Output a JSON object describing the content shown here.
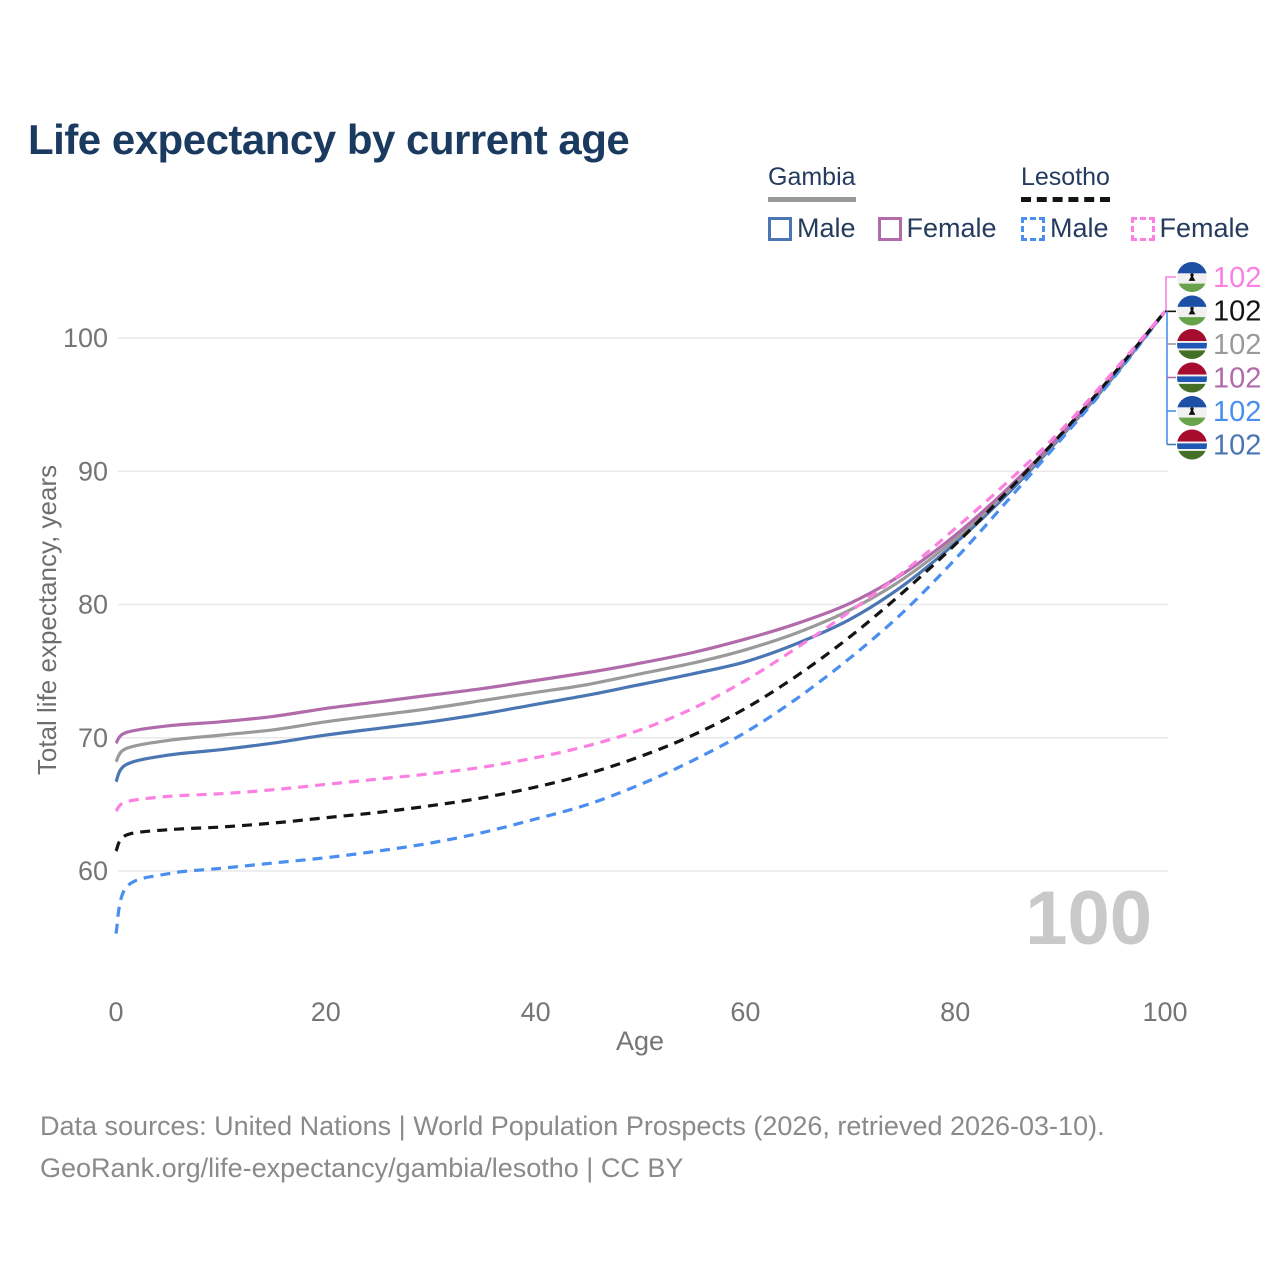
{
  "header": {
    "title": "Life expectancy by current age"
  },
  "legend": {
    "groups": [
      {
        "label": "Gambia",
        "line_style": "solid",
        "underline_color": "#9a9a9a",
        "items": [
          {
            "label": "Male",
            "color": "#4b76b4"
          },
          {
            "label": "Female",
            "color": "#b16bab"
          }
        ]
      },
      {
        "label": "Lesotho",
        "line_style": "dashed",
        "underline_color": "#141414",
        "items": [
          {
            "label": "Male",
            "color": "#4a8ff0"
          },
          {
            "label": "Female",
            "color": "#fb80e2"
          }
        ]
      }
    ]
  },
  "chart_data": {
    "type": "line",
    "title": "Life expectancy by current age",
    "xlabel": "Age",
    "ylabel": "Total life expectancy, years",
    "watermark": "100",
    "xlim": [
      0,
      100
    ],
    "ylim": [
      55,
      104
    ],
    "x_ticks": [
      0,
      20,
      40,
      60,
      80,
      100
    ],
    "y_ticks": [
      60,
      70,
      80,
      90,
      100
    ],
    "grid": "horizontal",
    "legend_position": "top-right",
    "x": [
      0,
      1,
      5,
      10,
      15,
      20,
      25,
      30,
      35,
      40,
      45,
      50,
      55,
      60,
      65,
      70,
      75,
      80,
      85,
      90,
      95,
      100
    ],
    "series": [
      {
        "id": "gambia_male",
        "name": "Gambia Male",
        "country": "Gambia",
        "sex": "Male",
        "color": "#4b76b4",
        "dashed": false,
        "flag": "gambia",
        "end_label": "102",
        "label_row": 5,
        "values": [
          66.7,
          68.0,
          68.7,
          69.1,
          69.6,
          70.2,
          70.7,
          71.2,
          71.8,
          72.5,
          73.2,
          74.0,
          74.8,
          75.7,
          77.1,
          78.9,
          81.4,
          84.6,
          88.3,
          92.5,
          97.0,
          102
        ]
      },
      {
        "id": "gambia_all",
        "name": "Gambia Total",
        "country": "Gambia",
        "sex": "Both",
        "color": "#9a9a9a",
        "dashed": false,
        "flag": "gambia",
        "end_label": "102",
        "label_row": 2,
        "values": [
          68.2,
          69.2,
          69.8,
          70.2,
          70.6,
          71.2,
          71.7,
          72.2,
          72.8,
          73.4,
          74.0,
          74.8,
          75.6,
          76.6,
          77.9,
          79.6,
          81.9,
          84.9,
          88.5,
          92.6,
          97.1,
          102
        ]
      },
      {
        "id": "gambia_female",
        "name": "Gambia Female",
        "country": "Gambia",
        "sex": "Female",
        "color": "#b16bab",
        "dashed": false,
        "flag": "gambia",
        "end_label": "102",
        "label_row": 3,
        "values": [
          69.6,
          70.4,
          70.9,
          71.2,
          71.6,
          72.2,
          72.7,
          73.2,
          73.7,
          74.3,
          74.9,
          75.6,
          76.4,
          77.4,
          78.6,
          80.1,
          82.3,
          85.2,
          88.7,
          92.7,
          97.2,
          102
        ]
      },
      {
        "id": "lesotho_male",
        "name": "Lesotho Male",
        "country": "Lesotho",
        "sex": "Male",
        "color": "#4a8ff0",
        "dashed": true,
        "flag": "lesotho",
        "end_label": "102",
        "label_row": 4,
        "values": [
          55.3,
          58.8,
          59.8,
          60.2,
          60.6,
          61.0,
          61.5,
          62.1,
          62.9,
          63.9,
          65.0,
          66.5,
          68.3,
          70.4,
          73.0,
          76.0,
          79.4,
          83.4,
          87.8,
          92.3,
          96.9,
          102
        ]
      },
      {
        "id": "lesotho_all",
        "name": "Lesotho Total",
        "country": "Lesotho",
        "sex": "Both",
        "color": "#141414",
        "dashed": true,
        "flag": "lesotho",
        "end_label": "102",
        "label_row": 1,
        "values": [
          61.5,
          62.7,
          63.1,
          63.3,
          63.6,
          64.0,
          64.4,
          64.9,
          65.5,
          66.3,
          67.3,
          68.6,
          70.2,
          72.2,
          74.7,
          77.6,
          80.9,
          84.5,
          88.5,
          92.7,
          97.2,
          102
        ]
      },
      {
        "id": "lesotho_female",
        "name": "Lesotho Female",
        "country": "Lesotho",
        "sex": "Female",
        "color": "#fb80e2",
        "dashed": true,
        "flag": "lesotho",
        "end_label": "102",
        "label_row": 0,
        "values": [
          64.5,
          65.2,
          65.6,
          65.8,
          66.1,
          66.5,
          66.9,
          67.3,
          67.8,
          68.5,
          69.4,
          70.6,
          72.2,
          74.3,
          76.8,
          79.5,
          82.4,
          85.7,
          89.2,
          93.0,
          97.4,
          102
        ]
      }
    ]
  },
  "footer": {
    "line1": "Data sources: United Nations | World Population Prospects (2026, retrieved 2026-03-10).",
    "line2": "GeoRank.org/life-expectancy/gambia/lesotho | CC BY"
  }
}
